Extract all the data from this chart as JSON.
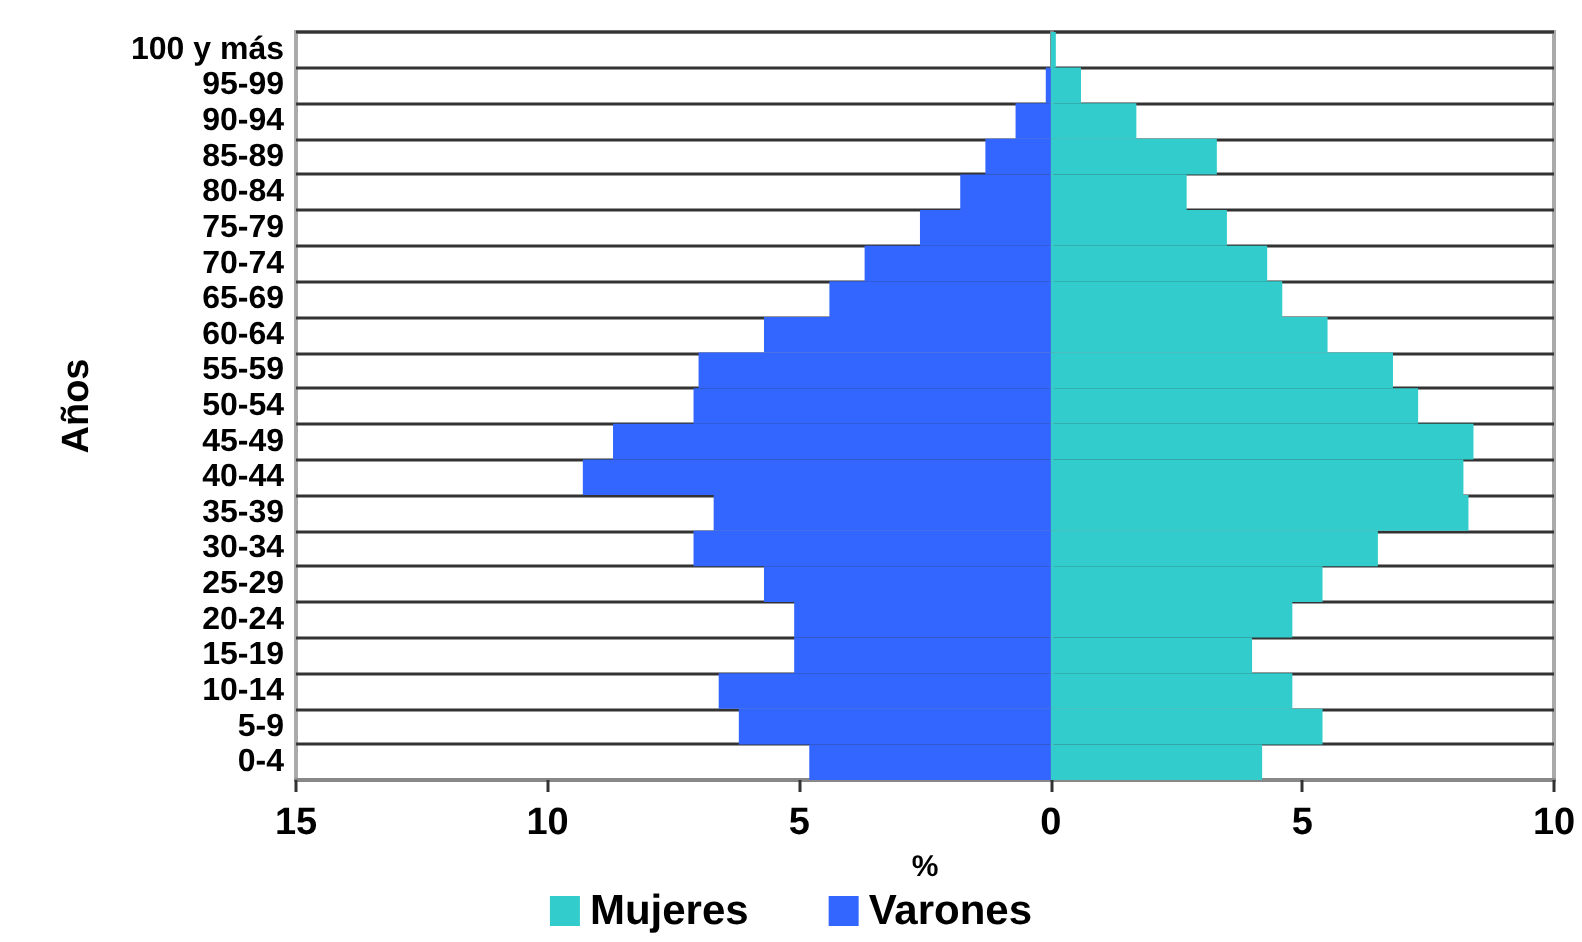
{
  "chart_data": {
    "type": "bar",
    "orientation": "horizontal",
    "stacked": true,
    "ylabel": "Años",
    "xlabel": "%",
    "categories": [
      "100 y más",
      "95-99",
      "90-94",
      "85-89",
      "80-84",
      "75-79",
      "70-74",
      "65-69",
      "60-64",
      "55-59",
      "50-54",
      "45-49",
      "40-44",
      "35-39",
      "30-34",
      "25-29",
      "20-24",
      "15-19",
      "10-14",
      "5-9",
      "0-4"
    ],
    "series": [
      {
        "name": "Mujeres",
        "color": "#33cccc",
        "values": [
          0.1,
          0.6,
          1.7,
          3.3,
          2.7,
          3.5,
          4.3,
          4.6,
          5.5,
          6.8,
          7.3,
          8.4,
          8.2,
          8.3,
          6.5,
          5.4,
          4.8,
          4.0,
          4.8,
          5.4,
          4.2
        ]
      },
      {
        "name": "Varones",
        "color": "#3366ff",
        "values": [
          0,
          -0.1,
          -0.7,
          -1.3,
          -1.8,
          -2.6,
          -3.7,
          -4.4,
          -5.7,
          -7.0,
          -7.1,
          -8.7,
          -9.3,
          -6.7,
          -7.1,
          -5.7,
          -5.1,
          -5.1,
          -6.6,
          -6.2,
          -4.8
        ]
      }
    ],
    "xlim": [
      -15,
      10
    ],
    "xticks": [
      {
        "value": -15,
        "label": "15"
      },
      {
        "value": -10,
        "label": "10"
      },
      {
        "value": -5,
        "label": "5"
      },
      0,
      5,
      10
    ],
    "grid": "y",
    "legend": "bottom"
  }
}
